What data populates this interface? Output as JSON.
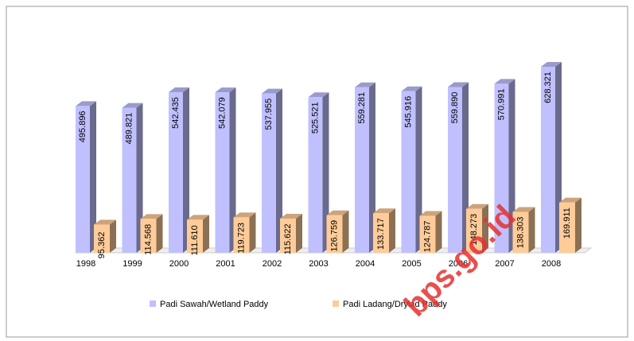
{
  "chart_data": {
    "type": "bar3d",
    "categories": [
      "1998",
      "1999",
      "2000",
      "2001",
      "2002",
      "2003",
      "2004",
      "2005",
      "2006",
      "2007",
      "2008"
    ],
    "series": [
      {
        "name": "Padi Sawah/Wetland Paddy",
        "color": "#c0c0ff",
        "values": [
          495896,
          489821,
          542435,
          542079,
          537955,
          525521,
          559281,
          545916,
          559890,
          570991,
          628321
        ],
        "value_labels": [
          "495.896",
          "489.821",
          "542.435",
          "542.079",
          "537.955",
          "525.521",
          "559.281",
          "545.916",
          "559.890",
          "570.991",
          "628.321"
        ]
      },
      {
        "name": "Padi Ladang/Drylad Paddy",
        "color": "#ffcc99",
        "values": [
          95362,
          114568,
          111610,
          119723,
          115622,
          126759,
          133717,
          124787,
          148273,
          138303,
          169911
        ],
        "value_labels": [
          "95.362",
          "114.568",
          "111.610",
          "119.723",
          "115.622",
          "126.759",
          "133.717",
          "124.787",
          "148.273",
          "138.303",
          "169.911"
        ]
      }
    ],
    "watermark": "bps.go.id"
  }
}
